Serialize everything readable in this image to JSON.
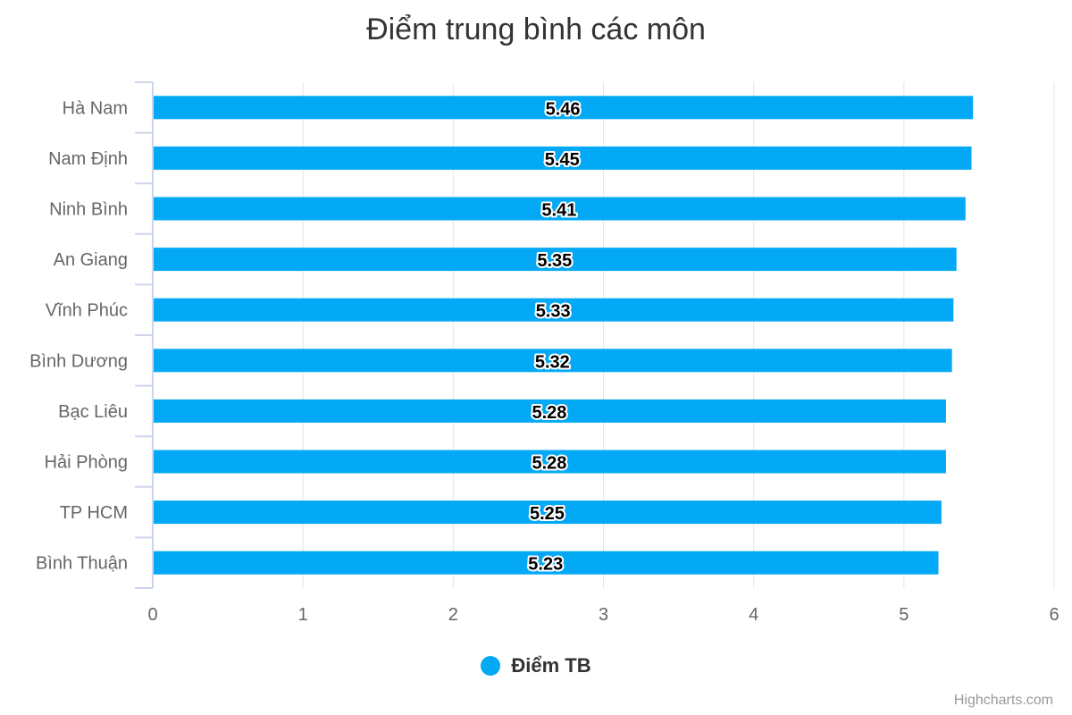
{
  "chart_data": {
    "type": "bar",
    "orientation": "horizontal",
    "title": "Điểm trung bình các môn",
    "categories": [
      "Hà Nam",
      "Nam Định",
      "Ninh Bình",
      "An Giang",
      "Vĩnh Phúc",
      "Bình Dương",
      "Bạc Liêu",
      "Hải Phòng",
      "TP HCM",
      "Bình Thuận"
    ],
    "series": [
      {
        "name": "Điểm TB",
        "values": [
          5.46,
          5.45,
          5.41,
          5.35,
          5.33,
          5.32,
          5.28,
          5.28,
          5.25,
          5.23
        ],
        "color": "#03a9f4"
      }
    ],
    "xlim": [
      0,
      6
    ],
    "x_ticks": [
      0,
      1,
      2,
      3,
      4,
      5,
      6
    ],
    "grid": true,
    "legend_position": "bottom-center",
    "data_labels": true
  },
  "credits": "Highcharts.com"
}
